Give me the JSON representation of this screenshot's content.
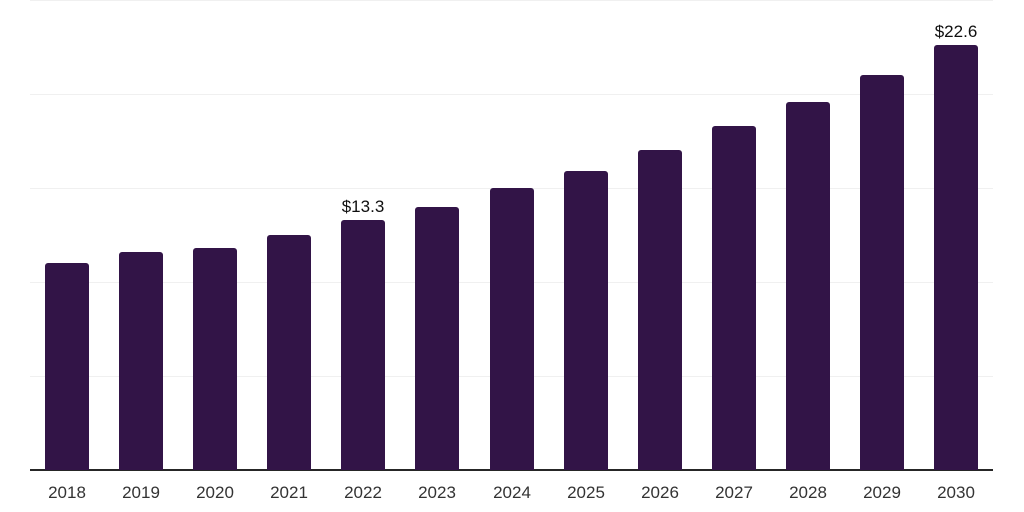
{
  "chart_data": {
    "type": "bar",
    "title": "",
    "categories": [
      "2018",
      "2019",
      "2020",
      "2021",
      "2022",
      "2023",
      "2024",
      "2025",
      "2026",
      "2027",
      "2028",
      "2029",
      "2030"
    ],
    "values": [
      11.0,
      11.6,
      11.8,
      12.5,
      13.3,
      14.0,
      15.0,
      15.9,
      17.0,
      18.3,
      19.6,
      21.0,
      22.6
    ],
    "data_labels": {
      "2022": "$13.3",
      "2030": "$22.6"
    },
    "value_prefix": "$",
    "xlabel": "",
    "ylabel": "",
    "ylim": [
      0,
      25
    ],
    "grid": true,
    "grid_interval": 5,
    "legend_position": "none",
    "bar_color": "#321447",
    "grid_color": "#f0f0f0",
    "axis_line_color": "#262626",
    "x_label_color": "#333333",
    "data_label_color": "#0f0f0f",
    "background_color": "#ffffff"
  }
}
